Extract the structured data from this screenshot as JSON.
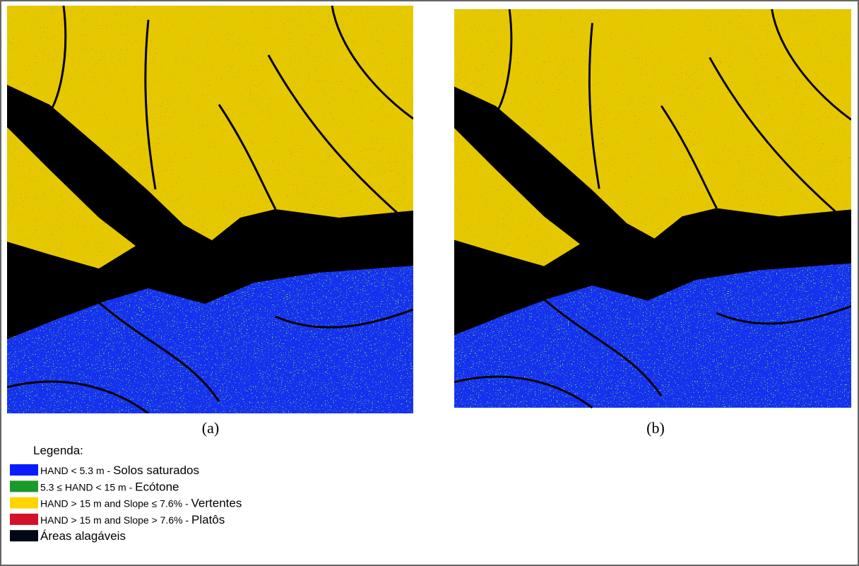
{
  "panels": [
    {
      "caption": "(a)"
    },
    {
      "caption": "(b)"
    }
  ],
  "legend": {
    "title": "Legenda:",
    "items": [
      {
        "color": "#0a1cff",
        "criterion": "HAND < 5.3 m - ",
        "class": "Solos saturados"
      },
      {
        "color": "#1a9a2a",
        "criterion": "5.3 ≤ HAND < 15 m - ",
        "class": "Ecótone"
      },
      {
        "color": "#ffd400",
        "criterion": "HAND > 15 m and Slope ≤ 7.6% - ",
        "class": "Vertentes"
      },
      {
        "color": "#d4102a",
        "criterion": "HAND > 15 m and Slope > 7.6% - ",
        "class": "Platôs"
      },
      {
        "color": "#000814",
        "class": "Áreas alagáveis"
      }
    ]
  }
}
